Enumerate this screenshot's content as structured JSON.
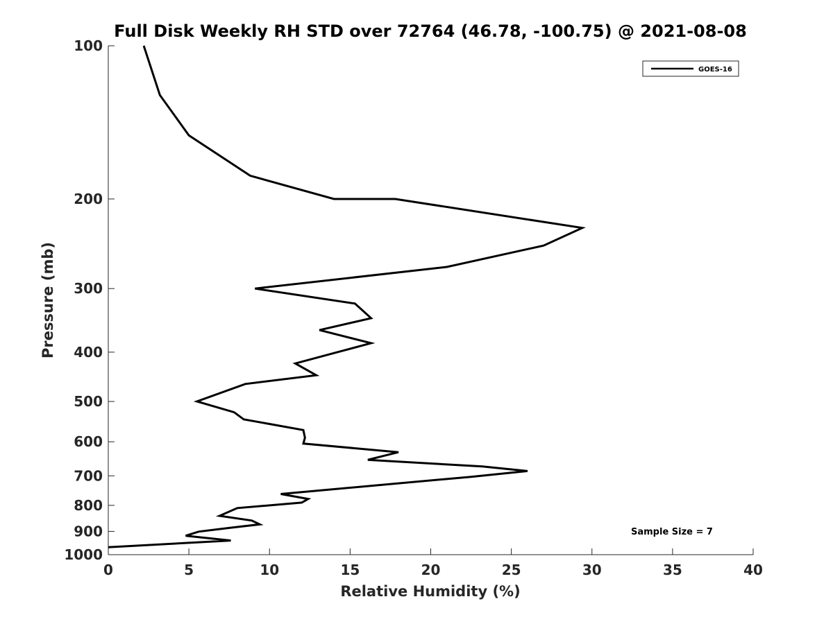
{
  "chart_data": {
    "type": "line",
    "title": "Full Disk Weekly RH STD over 72764 (46.78, -100.75) @ 2021-08-08",
    "xlabel": "Relative Humidity (%)",
    "ylabel": "Pressure (mb)",
    "xlim": [
      0,
      40
    ],
    "ylim": [
      100,
      1000
    ],
    "y_scale": "log",
    "y_reversed": true,
    "x_ticks": [
      0,
      5,
      10,
      15,
      20,
      25,
      30,
      35,
      40
    ],
    "x_tick_labels": [
      "0",
      "5",
      "10",
      "15",
      "20",
      "25",
      "30",
      "35",
      "40"
    ],
    "y_ticks": [
      100,
      200,
      300,
      400,
      500,
      600,
      700,
      800,
      900,
      1000
    ],
    "y_tick_labels": [
      "100",
      "200",
      "300",
      "400",
      "500",
      "600",
      "700",
      "800",
      "900",
      "1000"
    ],
    "grid": false,
    "legend_position": "top-right",
    "annotation": "Sample Size = 7",
    "series": [
      {
        "name": "GOES-16",
        "color": "#000000",
        "points": [
          {
            "x": 2.2,
            "y": 100
          },
          {
            "x": 3.2,
            "y": 125
          },
          {
            "x": 5.0,
            "y": 150
          },
          {
            "x": 8.8,
            "y": 180
          },
          {
            "x": 14.0,
            "y": 200
          },
          {
            "x": 17.8,
            "y": 200
          },
          {
            "x": 29.4,
            "y": 228
          },
          {
            "x": 27.0,
            "y": 247
          },
          {
            "x": 21.0,
            "y": 272
          },
          {
            "x": 9.1,
            "y": 300
          },
          {
            "x": 15.3,
            "y": 321
          },
          {
            "x": 16.3,
            "y": 343
          },
          {
            "x": 13.1,
            "y": 362
          },
          {
            "x": 16.3,
            "y": 384
          },
          {
            "x": 11.6,
            "y": 421
          },
          {
            "x": 12.9,
            "y": 444
          },
          {
            "x": 8.5,
            "y": 462
          },
          {
            "x": 5.5,
            "y": 500
          },
          {
            "x": 7.8,
            "y": 525
          },
          {
            "x": 8.4,
            "y": 542
          },
          {
            "x": 12.1,
            "y": 569
          },
          {
            "x": 12.2,
            "y": 589
          },
          {
            "x": 12.1,
            "y": 605
          },
          {
            "x": 18.0,
            "y": 629
          },
          {
            "x": 16.1,
            "y": 651
          },
          {
            "x": 23.2,
            "y": 671
          },
          {
            "x": 26.0,
            "y": 685
          },
          {
            "x": 22.5,
            "y": 703
          },
          {
            "x": 10.7,
            "y": 760
          },
          {
            "x": 12.4,
            "y": 777
          },
          {
            "x": 12.0,
            "y": 790
          },
          {
            "x": 8.0,
            "y": 810
          },
          {
            "x": 6.9,
            "y": 839
          },
          {
            "x": 8.9,
            "y": 857
          },
          {
            "x": 9.4,
            "y": 872
          },
          {
            "x": 7.6,
            "y": 885
          },
          {
            "x": 5.6,
            "y": 901
          },
          {
            "x": 4.8,
            "y": 918
          },
          {
            "x": 7.6,
            "y": 938
          },
          {
            "x": 0.0,
            "y": 967
          }
        ]
      }
    ]
  }
}
